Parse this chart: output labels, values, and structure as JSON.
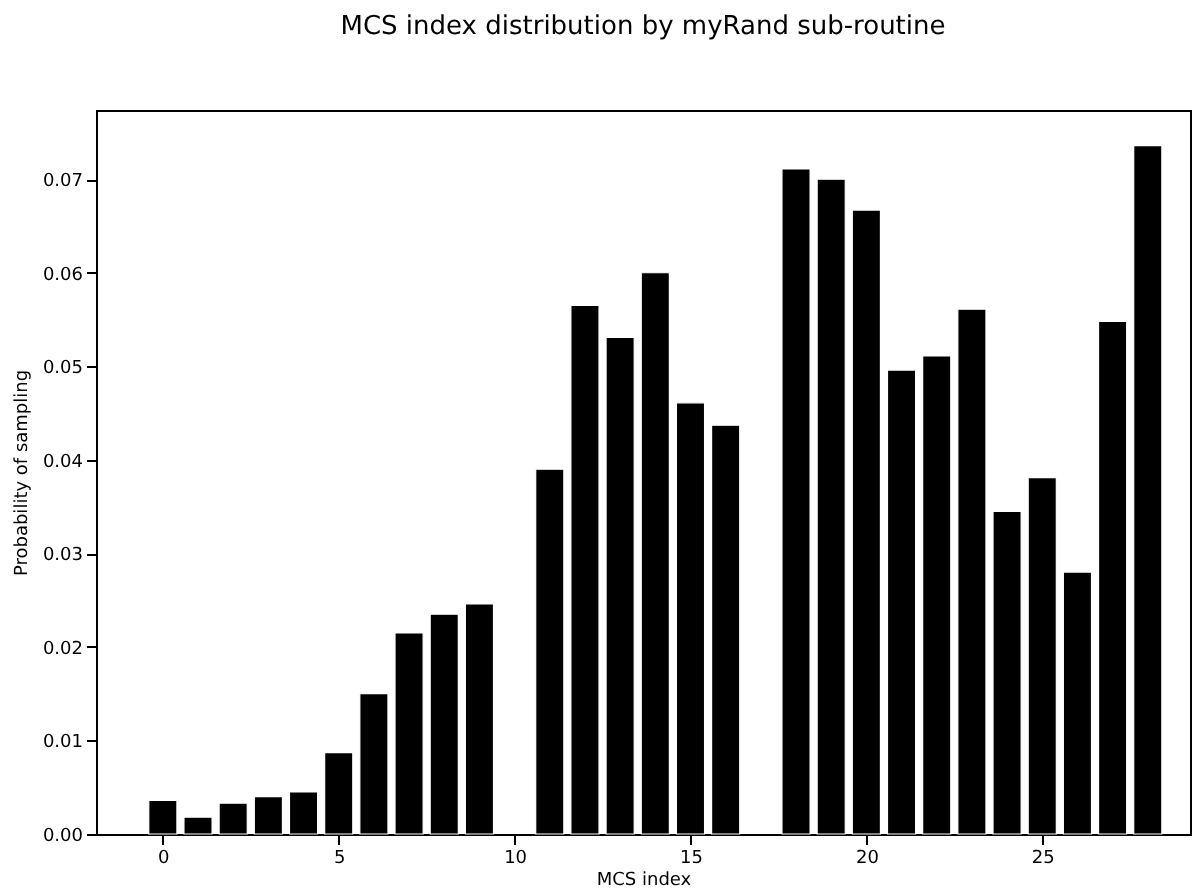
{
  "chart_data": {
    "type": "bar",
    "title": "MCS index distribution by myRand sub-routine",
    "xlabel": "MCS index",
    "ylabel": "Probability of sampling",
    "x": [
      0,
      1,
      2,
      3,
      4,
      5,
      6,
      7,
      8,
      9,
      11,
      12,
      13,
      14,
      15,
      16,
      18,
      19,
      20,
      21,
      22,
      23,
      24,
      25,
      26,
      27,
      28
    ],
    "values": [
      0.0036,
      0.0018,
      0.0033,
      0.004,
      0.0045,
      0.0087,
      0.015,
      0.0215,
      0.0235,
      0.0246,
      0.039,
      0.0565,
      0.0531,
      0.06,
      0.0461,
      0.0437,
      0.0711,
      0.07,
      0.0667,
      0.0496,
      0.0511,
      0.0561,
      0.0345,
      0.0381,
      0.028,
      0.0548,
      0.0736
    ],
    "color": "#000000",
    "xlim": [
      -1.9,
      29.2
    ],
    "xticks": [
      0,
      5,
      10,
      15,
      20,
      25
    ],
    "ylim": [
      0,
      0.0774
    ],
    "yticks": [
      {
        "value": 0,
        "label": "0.00"
      },
      {
        "value": 0.01,
        "label": "0.01"
      },
      {
        "value": 0.02,
        "label": "0.02"
      },
      {
        "value": 0.03,
        "label": "0.03"
      },
      {
        "value": 0.04,
        "label": "0.04"
      },
      {
        "value": 0.05,
        "label": "0.05"
      },
      {
        "value": 0.06,
        "label": "0.06"
      },
      {
        "value": 0.07,
        "label": "0.07"
      }
    ],
    "grid": false
  }
}
